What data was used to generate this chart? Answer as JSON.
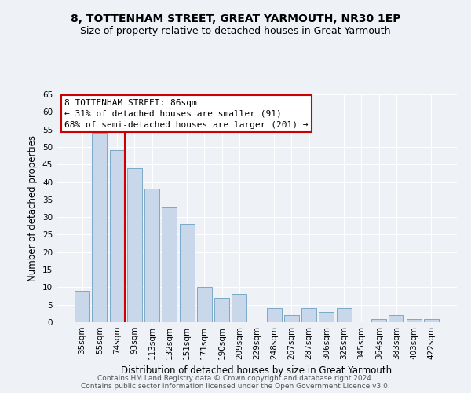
{
  "title": "8, TOTTENHAM STREET, GREAT YARMOUTH, NR30 1EP",
  "subtitle": "Size of property relative to detached houses in Great Yarmouth",
  "xlabel": "Distribution of detached houses by size in Great Yarmouth",
  "ylabel": "Number of detached properties",
  "categories": [
    "35sqm",
    "55sqm",
    "74sqm",
    "93sqm",
    "113sqm",
    "132sqm",
    "151sqm",
    "171sqm",
    "190sqm",
    "209sqm",
    "229sqm",
    "248sqm",
    "267sqm",
    "287sqm",
    "306sqm",
    "325sqm",
    "345sqm",
    "364sqm",
    "383sqm",
    "403sqm",
    "422sqm"
  ],
  "values": [
    9,
    54,
    49,
    44,
    38,
    33,
    28,
    10,
    7,
    8,
    0,
    4,
    2,
    4,
    3,
    4,
    0,
    1,
    2,
    1,
    1
  ],
  "bar_color": "#c8d8ea",
  "bar_edge_color": "#7aaac8",
  "vline_color": "#cc0000",
  "vline_x_index": 2,
  "annotation_text_line1": "8 TOTTENHAM STREET: 86sqm",
  "annotation_text_line2": "← 31% of detached houses are smaller (91)",
  "annotation_text_line3": "68% of semi-detached houses are larger (201) →",
  "ylim": [
    0,
    65
  ],
  "yticks": [
    0,
    5,
    10,
    15,
    20,
    25,
    30,
    35,
    40,
    45,
    50,
    55,
    60,
    65
  ],
  "footer_line1": "Contains HM Land Registry data © Crown copyright and database right 2024.",
  "footer_line2": "Contains public sector information licensed under the Open Government Licence v3.0.",
  "bg_color": "#eef2f7",
  "plot_bg_color": "#eef2f7",
  "title_fontsize": 10,
  "subtitle_fontsize": 9,
  "axis_label_fontsize": 8.5,
  "tick_fontsize": 7.5,
  "annotation_fontsize": 8,
  "footer_fontsize": 6.5
}
